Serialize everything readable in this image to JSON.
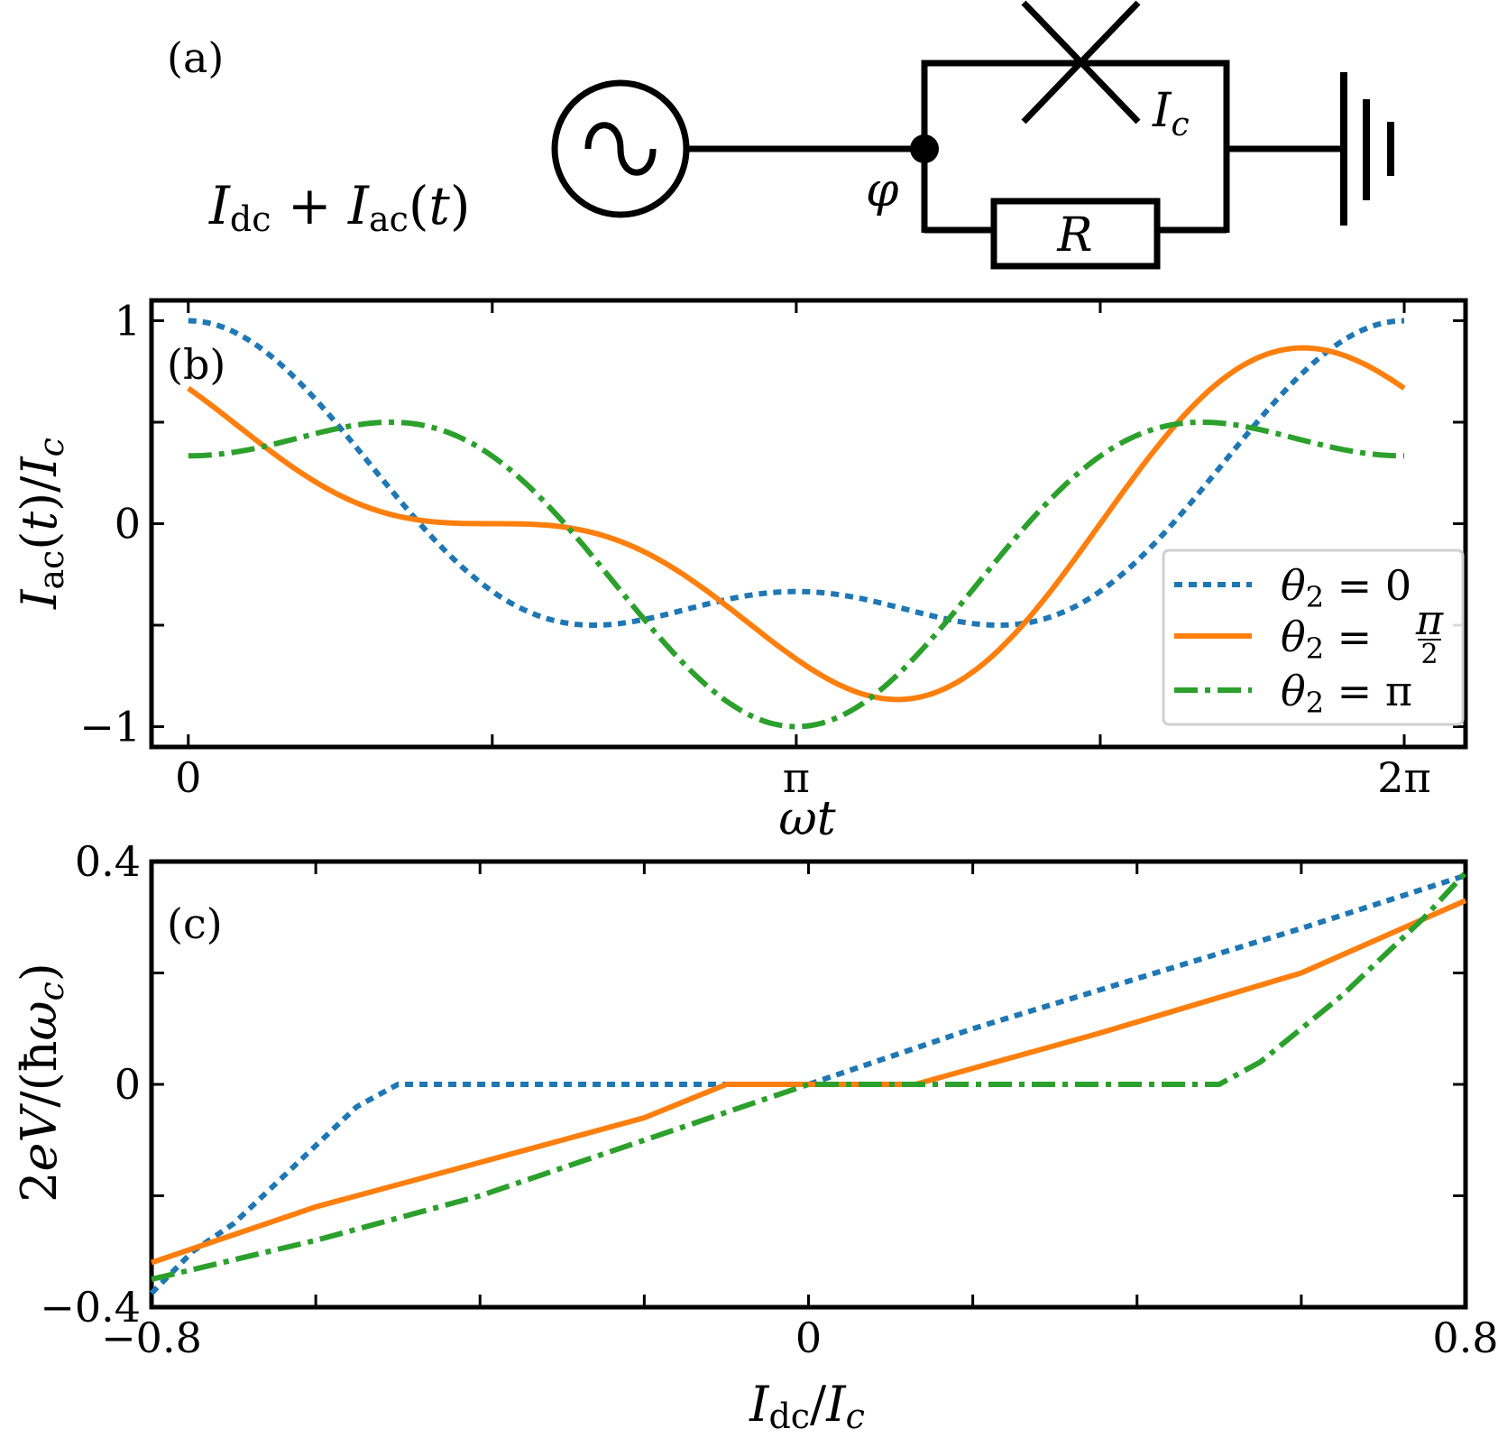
{
  "panel_a": {
    "label": "(a)",
    "source_label": "I_dc + I_ac(t)",
    "critical_current_label": "I_c",
    "resistor_label": "R",
    "phase_label": "φ"
  },
  "chart_data": [
    {
      "type": "line",
      "panel_label": "(b)",
      "xlabel": "ωt",
      "ylabel": "I_ac(t)/I_c",
      "xlim": [
        -0.19,
        6.6
      ],
      "ylim": [
        -1.1,
        1.1
      ],
      "x_ticks": [
        0,
        3.14159,
        6.28318
      ],
      "x_tick_labels": [
        "0",
        "π",
        "2π"
      ],
      "y_ticks": [
        -1,
        0,
        1
      ],
      "y_tick_labels": [
        "−1",
        "0",
        "1"
      ],
      "legend_position": "lower right",
      "series": [
        {
          "name": "θ2 = 0",
          "color": "#1f77b4",
          "dash": "dotted",
          "formula": "0.667*cos(x)+0.333*cos(2x)"
        },
        {
          "name": "θ2 = π/2",
          "color": "#ff7f0e",
          "dash": "solid",
          "formula": "0.667*cos(x)-0.333*sin(2x)"
        },
        {
          "name": "θ2 = π",
          "color": "#2ca02c",
          "dash": "dashdot",
          "formula": "0.667*cos(x)-0.333*cos(2x)"
        }
      ]
    },
    {
      "type": "line",
      "panel_label": "(c)",
      "xlabel": "I_dc/I_c",
      "ylabel": "2eV/(ħω_c)",
      "xlim": [
        -0.8,
        0.8
      ],
      "ylim": [
        -0.4,
        0.4
      ],
      "x_ticks": [
        -0.8,
        0,
        0.8
      ],
      "x_tick_labels": [
        "−0.8",
        "0",
        "0.8"
      ],
      "y_ticks": [
        -0.4,
        0,
        0.4
      ],
      "y_tick_labels": [
        "−0.4",
        "0",
        "0.4"
      ],
      "series": [
        {
          "name": "θ2 = 0",
          "color": "#1f77b4",
          "dash": "dotted",
          "x": [
            -0.8,
            -0.75,
            -0.7,
            -0.65,
            -0.6,
            -0.55,
            -0.5,
            -0.4,
            -0.2,
            0,
            0.2,
            0.4,
            0.6,
            0.8
          ],
          "y": [
            -0.375,
            -0.3,
            -0.25,
            -0.18,
            -0.11,
            -0.04,
            0,
            0,
            0,
            0,
            0.1,
            0.19,
            0.28,
            0.375
          ]
        },
        {
          "name": "θ2 = π/2",
          "color": "#ff7f0e",
          "dash": "solid",
          "x": [
            -0.8,
            -0.6,
            -0.4,
            -0.2,
            -0.1,
            0,
            0.13,
            0.35,
            0.6,
            0.8
          ],
          "y": [
            -0.32,
            -0.22,
            -0.14,
            -0.06,
            0,
            0,
            0,
            0.09,
            0.2,
            0.33
          ]
        },
        {
          "name": "θ2 = π",
          "color": "#2ca02c",
          "dash": "dashdot",
          "x": [
            -0.8,
            -0.6,
            -0.4,
            -0.2,
            0,
            0.2,
            0.5,
            0.55,
            0.6,
            0.65,
            0.7,
            0.75,
            0.8
          ],
          "y": [
            -0.35,
            -0.28,
            -0.2,
            -0.1,
            0,
            0,
            0,
            0.04,
            0.1,
            0.16,
            0.23,
            0.3,
            0.38
          ]
        }
      ]
    }
  ]
}
